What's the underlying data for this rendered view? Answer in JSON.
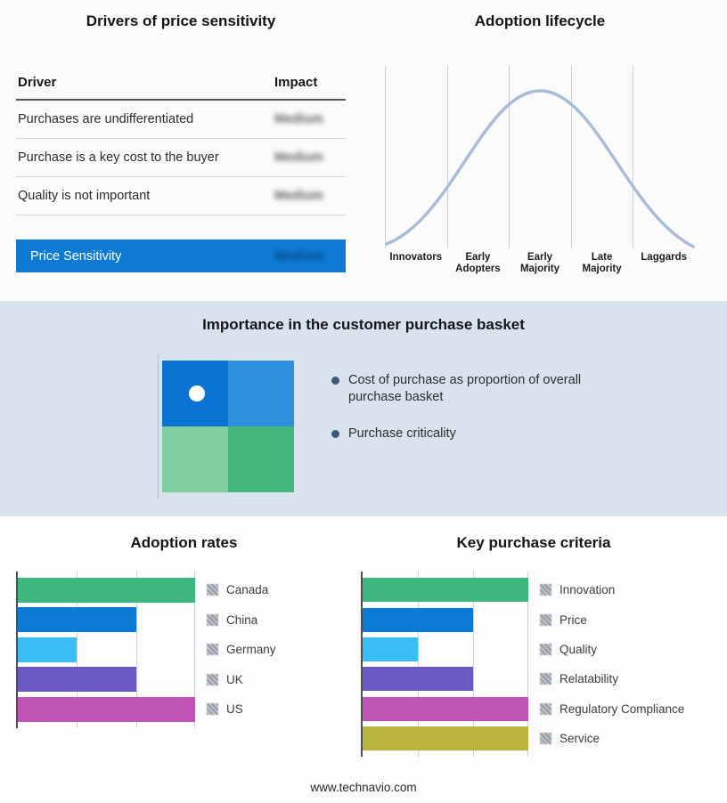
{
  "page": {
    "footer": "www.technavio.com",
    "band_background": "#d9e3ed",
    "curve_color": "#a8bdd5"
  },
  "drivers": {
    "title": "Drivers of price sensitivity",
    "col_driver": "Driver",
    "col_impact": "Impact",
    "rows": [
      {
        "driver": "Purchases are undifferentiated",
        "impact": "Medium"
      },
      {
        "driver": "Purchase is a key cost to the buyer",
        "impact": "Medium"
      },
      {
        "driver": "Quality is not important",
        "impact": "Medium"
      }
    ],
    "summary": {
      "label": "Price Sensitivity",
      "impact": "Medium",
      "color": "#0e7ad3"
    }
  },
  "lifecycle": {
    "title": "Adoption lifecycle",
    "stages": [
      "Innovators",
      "Early Adopters",
      "Early Majority",
      "Late Majority",
      "Laggards"
    ]
  },
  "basket": {
    "title": "Importance in the customer purchase basket",
    "bullets": [
      "Cost of purchase as proportion of overall purchase basket",
      "Purchase criticality"
    ],
    "matrix": {
      "top_left": "#0b74d2",
      "top_right": "#2f8fdd",
      "bottom_left": "#7fcfa2",
      "bottom_right": "#44b87e"
    }
  },
  "chart_data": [
    {
      "type": "bar",
      "orientation": "horizontal",
      "title": "Adoption rates",
      "categories": [
        "Canada",
        "China",
        "Germany",
        "UK",
        "US"
      ],
      "values": [
        3,
        2,
        1,
        2,
        3
      ],
      "xlim": [
        0,
        3
      ],
      "grid": true,
      "legend_position": "right",
      "colors": [
        "#3db77e",
        "#0d7bd6",
        "#38bdf5",
        "#6a59c5",
        "#c155b5"
      ]
    },
    {
      "type": "bar",
      "orientation": "horizontal",
      "title": "Key purchase criteria",
      "categories": [
        "Innovation",
        "Price",
        "Quality",
        "Relatability",
        "Regulatory Compliance",
        "Service"
      ],
      "values": [
        3,
        2,
        1,
        2,
        3,
        3
      ],
      "xlim": [
        0,
        3
      ],
      "grid": true,
      "legend_position": "right",
      "colors": [
        "#3db77e",
        "#0d7bd6",
        "#38bdf5",
        "#6a59c5",
        "#c155b5",
        "#b9b440"
      ]
    }
  ]
}
